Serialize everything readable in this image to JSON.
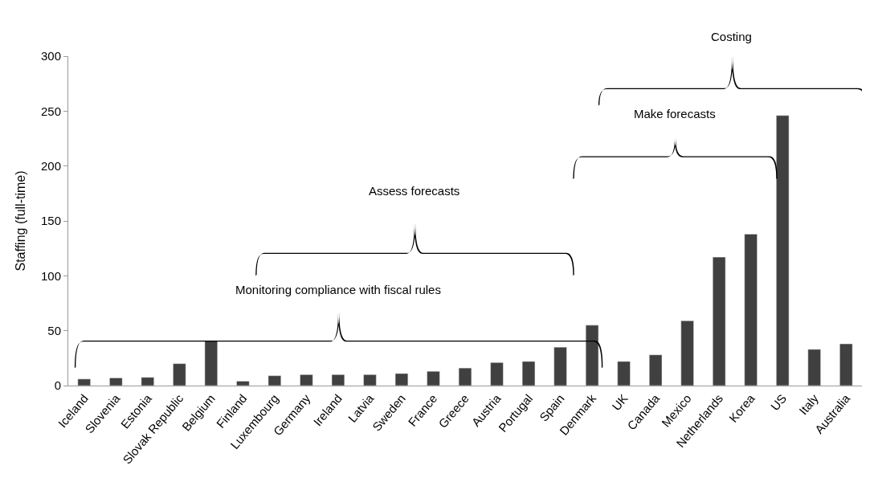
{
  "chart_data": {
    "type": "bar",
    "ylabel": "Staffing (full-time)",
    "categories": [
      "Iceland",
      "Slovenia",
      "Estonia",
      "Slovak Republic",
      "Belgium",
      "Finland",
      "Luxembourg",
      "Germany",
      "Ireland",
      "Latvia",
      "Sweden",
      "France",
      "Greece",
      "Austria",
      "Portugal",
      "Spain",
      "Denmark",
      "UK",
      "Canada",
      "Mexico",
      "Netherlands",
      "Korea",
      "US",
      "Italy",
      "Australia"
    ],
    "values": [
      6,
      7,
      7.5,
      20,
      41,
      4,
      9,
      10,
      10,
      10,
      11,
      13,
      16,
      21,
      22,
      35,
      55,
      22,
      28,
      59,
      117,
      138,
      246,
      33,
      38
    ],
    "color": "#404040",
    "ylim": [
      0,
      300
    ],
    "yticks": [
      0,
      50,
      100,
      150,
      200,
      250,
      300
    ],
    "annotations": [
      "Monitoring compliance with fiscal rules",
      "Assess forecasts",
      "Make forecasts",
      "Costing"
    ]
  }
}
